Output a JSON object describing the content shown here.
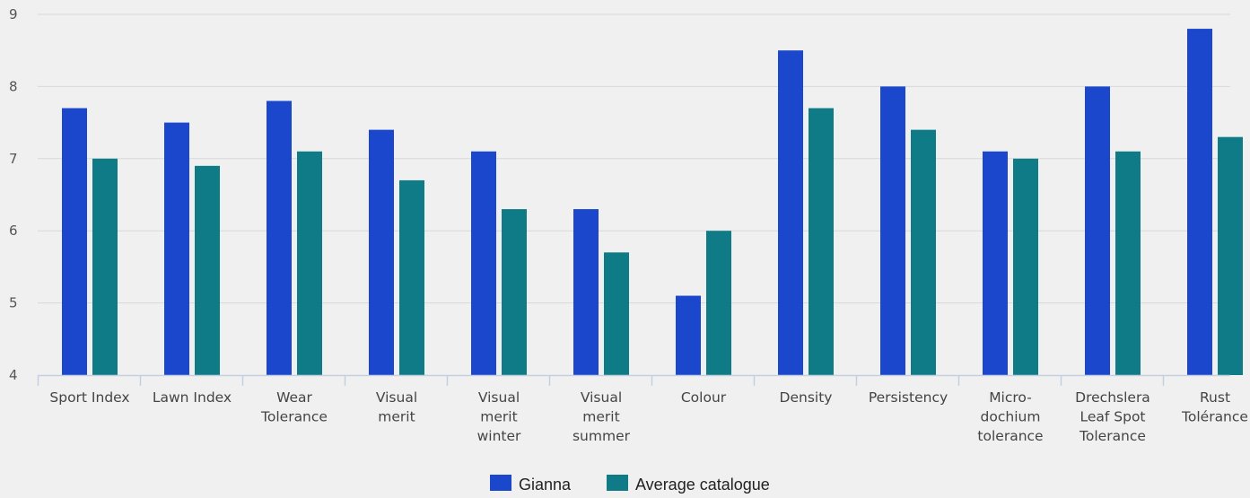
{
  "chart_data": {
    "type": "bar",
    "categories": [
      "Sport Index",
      "Lawn Index",
      "Wear Tolerance",
      "Visual merit",
      "Visual merit winter",
      "Visual merit summer",
      "Colour",
      "Density",
      "Persistency",
      "Micro-dochium tolerance",
      "Drechslera Leaf Spot Tolerance",
      "Rust Tolérance"
    ],
    "category_lines": [
      [
        "Sport Index"
      ],
      [
        "Lawn Index"
      ],
      [
        "Wear",
        "Tolerance"
      ],
      [
        "Visual",
        "merit"
      ],
      [
        "Visual",
        "merit",
        "winter"
      ],
      [
        "Visual",
        "merit",
        "summer"
      ],
      [
        "Colour"
      ],
      [
        "Density"
      ],
      [
        "Persistency"
      ],
      [
        "Micro-",
        "dochium",
        "tolerance"
      ],
      [
        "Drechslera",
        "Leaf Spot",
        "Tolerance"
      ],
      [
        "Rust",
        "Tolérance"
      ]
    ],
    "series": [
      {
        "name": "Gianna",
        "color": "#1a47cc",
        "values": [
          7.7,
          7.5,
          7.8,
          7.4,
          7.1,
          6.3,
          5.1,
          8.5,
          8.0,
          7.1,
          8.0,
          8.8
        ]
      },
      {
        "name": "Average catalogue",
        "color": "#0e7b86",
        "values": [
          7.0,
          6.9,
          7.1,
          6.7,
          6.3,
          5.7,
          6.0,
          7.7,
          7.4,
          7.0,
          7.1,
          7.3
        ]
      }
    ],
    "ylim": [
      4,
      9
    ],
    "yticks": [
      4,
      5,
      6,
      7,
      8,
      9
    ],
    "grid": true,
    "legend_position": "bottom-center"
  }
}
